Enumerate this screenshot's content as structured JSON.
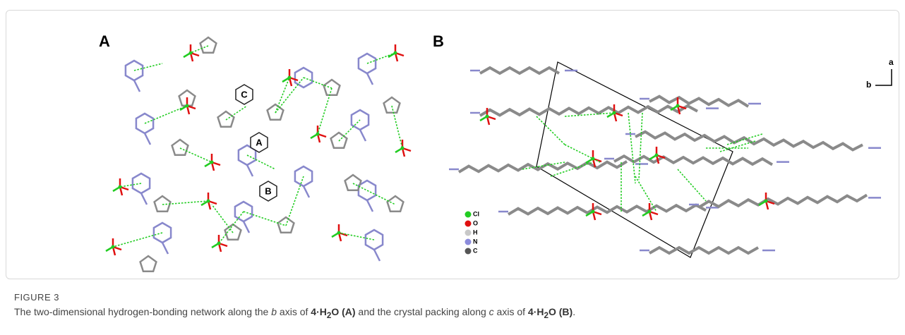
{
  "figure": {
    "panels": {
      "a_label": "A",
      "b_label": "B"
    },
    "panel_a_ring_labels": [
      "C",
      "A",
      "B"
    ],
    "axes": {
      "a": "a",
      "b": "b"
    },
    "legend": [
      "Cl",
      "O",
      "H",
      "N",
      "C"
    ],
    "label": "FIGURE 3",
    "caption": [
      "The two-dimensional hydrogen-bonding network along the ",
      "b",
      " axis of ",
      "4·H",
      "2",
      "O (A)",
      " and the crystal packing along ",
      "c",
      " axis of ",
      "4·H",
      "2",
      "O (B)",
      "."
    ]
  }
}
